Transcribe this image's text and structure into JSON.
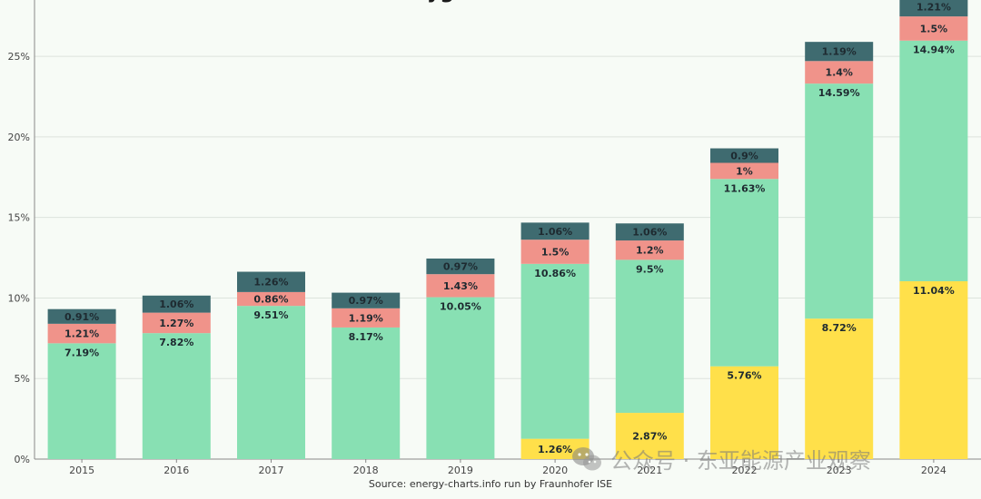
{
  "chart_data": {
    "type": "bar",
    "stacked": true,
    "title_fragment": "yg",
    "categories": [
      "2015",
      "2016",
      "2017",
      "2018",
      "2019",
      "2020",
      "2021",
      "2022",
      "2023",
      "2024"
    ],
    "series": [
      {
        "color": "#ffe04a",
        "values": [
          0,
          0,
          0,
          0,
          0,
          1.26,
          2.87,
          5.76,
          8.72,
          11.04
        ],
        "labels": [
          "",
          "",
          "",
          "",
          "",
          "1.26%",
          "2.87%",
          "5.76%",
          "8.72%",
          "11.04%"
        ]
      },
      {
        "color": "#88e0b3",
        "values": [
          7.19,
          7.82,
          9.51,
          8.17,
          10.05,
          10.86,
          9.5,
          11.63,
          14.59,
          14.94
        ],
        "labels": [
          "7.19%",
          "7.82%",
          "9.51%",
          "8.17%",
          "10.05%",
          "10.86%",
          "9.5%",
          "11.63%",
          "14.59%",
          "14.94%"
        ]
      },
      {
        "color": "#f0938a",
        "values": [
          1.21,
          1.27,
          0.86,
          1.19,
          1.43,
          1.5,
          1.2,
          1,
          1.4,
          1.5
        ],
        "labels": [
          "1.21%",
          "1.27%",
          "0.86%",
          "1.19%",
          "1.43%",
          "1.5%",
          "1.2%",
          "1%",
          "1.4%",
          "1.5%"
        ]
      },
      {
        "color": "#3f6b70",
        "values": [
          0.91,
          1.06,
          1.26,
          0.97,
          0.97,
          1.06,
          1.06,
          0.9,
          1.19,
          1.21
        ],
        "labels": [
          "0.91%",
          "1.06%",
          "1.26%",
          "0.97%",
          "0.97%",
          "1.06%",
          "1.06%",
          "0.9%",
          "1.19%",
          "1.21%"
        ]
      }
    ],
    "yticks": [
      "0%",
      "5%",
      "10%",
      "15%",
      "20%",
      "25%"
    ],
    "ytick_values": [
      0,
      5,
      10,
      15,
      20,
      25
    ],
    "ylim": [
      0,
      28.5
    ],
    "grid": true,
    "source": "Source: energy-charts.info run by Fraunhofer ISE"
  },
  "watermark": {
    "text": "公众号 · 东亚能源产业观察",
    "icon": "wechat-icon"
  }
}
